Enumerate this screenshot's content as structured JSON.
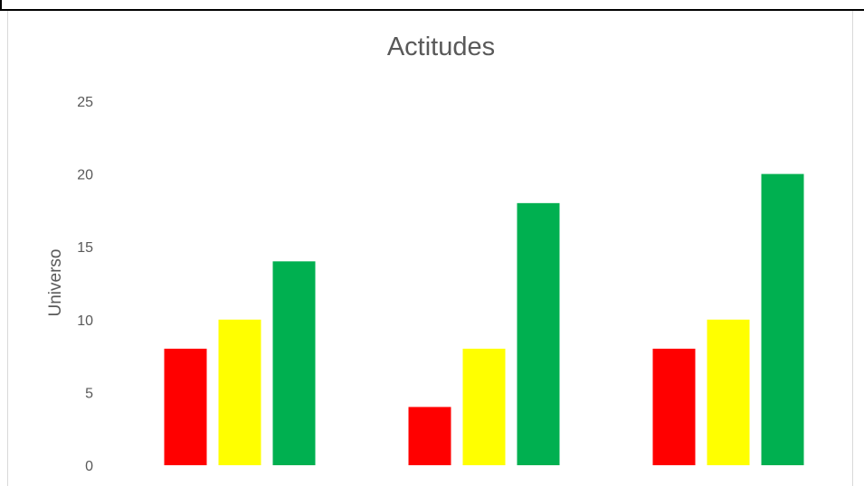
{
  "chart_data": {
    "type": "bar",
    "title": "Actitudes",
    "ylabel": "Universo",
    "xlabel": "",
    "categories": [
      "",
      "",
      ""
    ],
    "series": [
      {
        "color": "#ff0000",
        "values": [
          8,
          4,
          8
        ]
      },
      {
        "color": "#ffff00",
        "values": [
          10,
          8,
          10
        ]
      },
      {
        "color": "#00b050",
        "values": [
          14,
          18,
          20
        ]
      }
    ],
    "ylim": [
      0,
      25
    ],
    "yticks": [
      "0",
      "5",
      "10",
      "15",
      "20",
      "25"
    ],
    "grid": false,
    "legend": "none"
  }
}
